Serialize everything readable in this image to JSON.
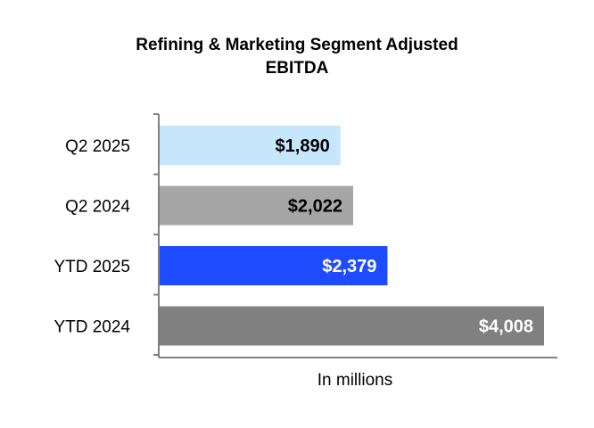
{
  "chart_data": {
    "type": "bar",
    "orientation": "horizontal",
    "title": "Refining & Marketing Segment Adjusted EBITDA",
    "title_lines": [
      "Refining & Marketing Segment Adjusted",
      "EBITDA"
    ],
    "xlabel": "In millions",
    "ylabel": "",
    "categories": [
      "Q2 2025",
      "Q2 2024",
      "YTD 2025",
      "YTD 2024"
    ],
    "values": [
      1890,
      2022,
      2379,
      4008
    ],
    "value_labels": [
      "$1,890",
      "$2,022",
      "$2,379",
      "$4,008"
    ],
    "bar_colors": [
      "#c6e6fb",
      "#a6a6a6",
      "#1f4bff",
      "#808080"
    ],
    "label_colors": [
      "#000000",
      "#000000",
      "#ffffff",
      "#ffffff"
    ],
    "xlim": [
      0,
      4100
    ],
    "grid": false,
    "legend": "none"
  }
}
